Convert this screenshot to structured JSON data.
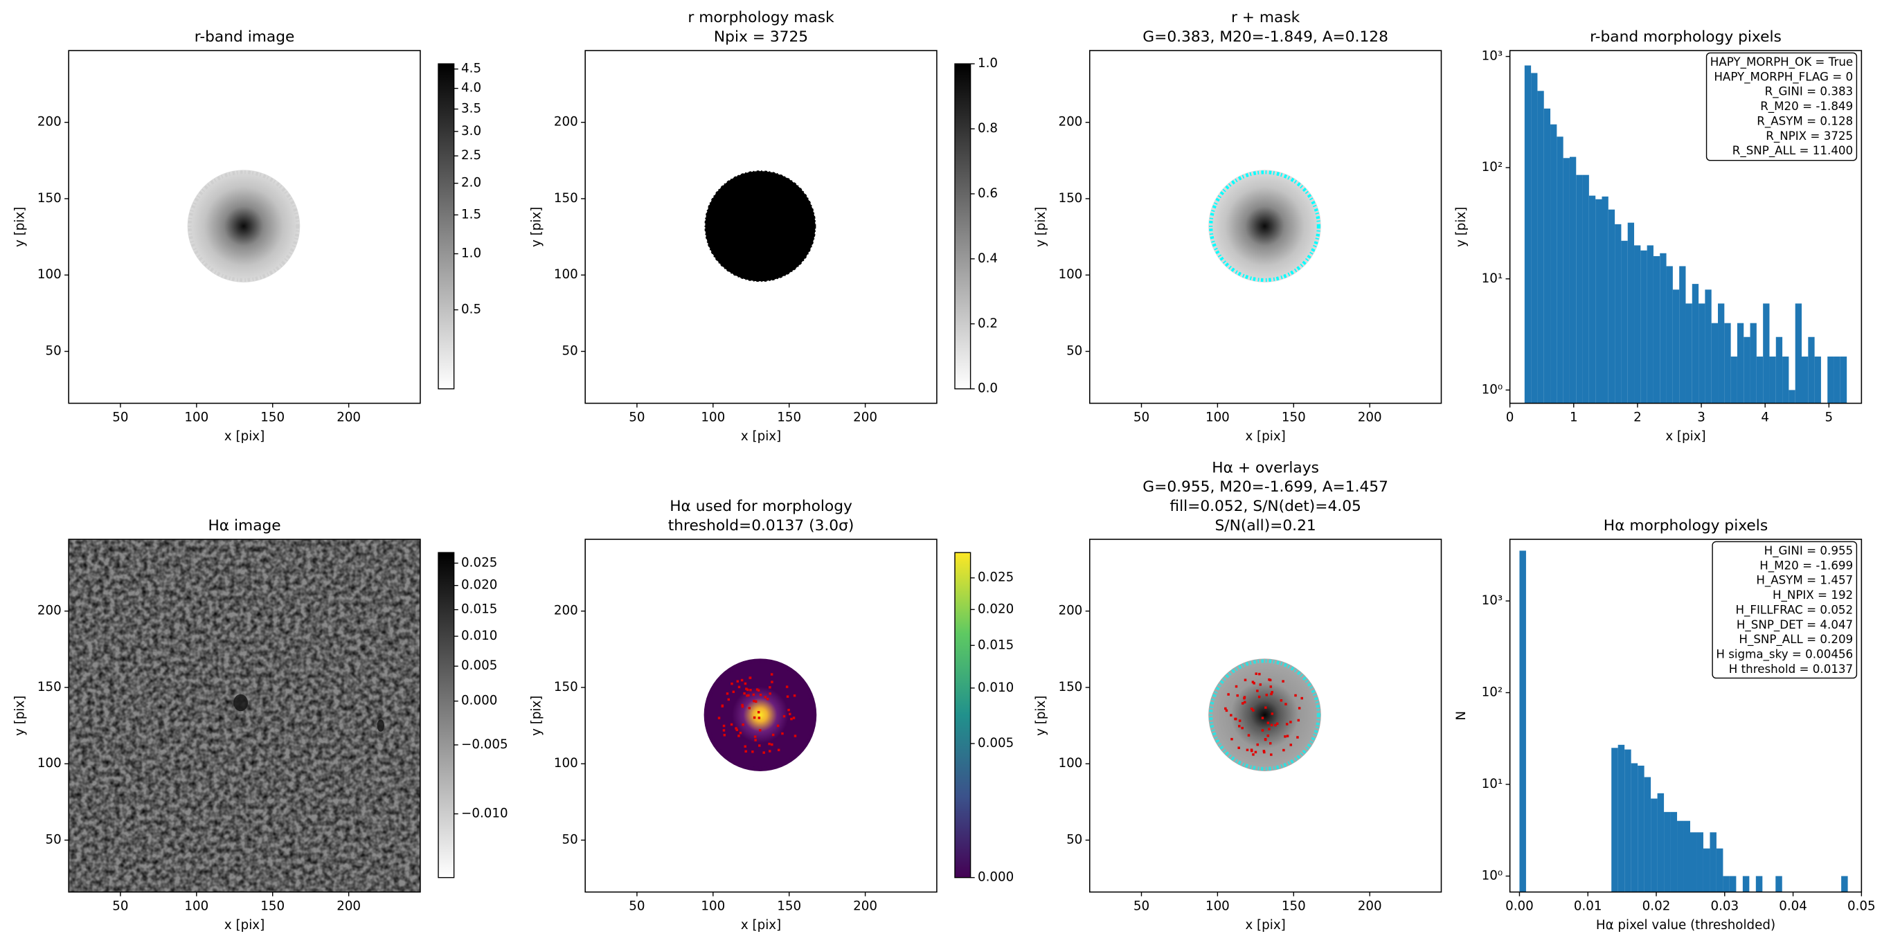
{
  "chart_data": [
    {
      "type": "image",
      "title": [
        "r-band image"
      ],
      "xlabel": "x [pix]",
      "ylabel": "y [pix]",
      "xlim": [
        16,
        247
      ],
      "ylim": [
        16,
        247
      ],
      "xticks": [
        50,
        100,
        150,
        200
      ],
      "yticks": [
        50,
        100,
        150,
        200
      ],
      "cmap": "gray_r",
      "clim": [
        0.24,
        4.64
      ],
      "cscale": "sqrt",
      "cticks": [
        0.5,
        {
          "value": 1,
          "label": "1.0"
        },
        1.5,
        {
          "value": 2,
          "label": "2.0"
        },
        2.5,
        {
          "value": 3,
          "label": "3.0"
        },
        3.5,
        {
          "value": 4,
          "label": "4.0"
        },
        4.5
      ]
    },
    {
      "type": "image",
      "title": [
        "r morphology mask",
        "Npix = 3725"
      ],
      "xlabel": "x [pix]",
      "ylabel": "y [pix]",
      "xlim": [
        16,
        247
      ],
      "ylim": [
        16,
        247
      ],
      "xticks": [
        50,
        100,
        150,
        200
      ],
      "yticks": [
        50,
        100,
        150,
        200
      ],
      "cmap": "gray_r",
      "clim": [
        0,
        1
      ],
      "cscale": "linear",
      "cticks": [
        {
          "value": 0,
          "label": "0.0"
        },
        0.2,
        0.4,
        0.6,
        0.8,
        {
          "value": 1,
          "label": "1.0"
        }
      ]
    },
    {
      "type": "image",
      "title": [
        "r + mask",
        "G=0.383, M20=-1.849, A=0.128"
      ],
      "xlabel": "x [pix]",
      "ylabel": "y [pix]",
      "xlim": [
        16,
        247
      ],
      "ylim": [
        16,
        247
      ],
      "xticks": [
        50,
        100,
        150,
        200
      ],
      "yticks": [
        50,
        100,
        150,
        200
      ]
    },
    {
      "type": "histogram",
      "title": [
        "r-band morphology pixels"
      ],
      "xlabel": "x [pix]",
      "ylabel": "y [pix]",
      "color": "#1f77b4",
      "bins": [
        0.23,
        0.331,
        0.432,
        0.533,
        0.634,
        0.735,
        0.836,
        0.937,
        1.038,
        1.139,
        1.24,
        1.341,
        1.442,
        1.543,
        1.644,
        1.745,
        1.846,
        1.947,
        2.048,
        2.149,
        2.25,
        2.351,
        2.452,
        2.553,
        2.654,
        2.755,
        2.856,
        2.957,
        3.058,
        3.159,
        3.26,
        3.361,
        3.462,
        3.563,
        3.664,
        3.765,
        3.866,
        3.967,
        4.068,
        4.169,
        4.27,
        4.371,
        4.472,
        4.573,
        4.674,
        4.775,
        4.876,
        4.977,
        5.078,
        5.179,
        5.28
      ],
      "values": [
        830,
        710,
        490,
        340,
        245,
        190,
        122,
        125,
        86,
        86,
        56,
        52,
        55,
        42,
        31,
        22,
        32,
        20,
        18,
        20,
        16,
        17,
        13,
        8,
        13,
        6,
        9,
        6,
        8,
        4,
        6,
        4,
        2,
        4,
        3,
        4,
        2,
        6,
        2,
        3,
        2,
        1,
        6,
        2,
        3,
        2,
        0,
        2,
        2,
        2
      ],
      "xlim": [
        0,
        5.51
      ],
      "xticks": [
        0,
        1,
        2,
        3,
        4,
        5
      ],
      "ylim": [
        0.76,
        1130
      ],
      "yscale": "log",
      "yticks": [
        {
          "value": 1,
          "label": "10⁰"
        },
        {
          "value": 10,
          "label": "10¹"
        },
        {
          "value": 100,
          "label": "10²"
        },
        {
          "value": 1000,
          "label": "10³"
        }
      ],
      "annotation": [
        "HAPY_MORPH_OK = True",
        "HAPY_MORPH_FLAG = 0",
        "R_GINI = 0.383",
        "R_M20 = -1.849",
        "R_ASYM = 0.128",
        "R_NPIX = 3725",
        "R_SNP_ALL = 11.400"
      ]
    },
    {
      "type": "image",
      "title": [
        "Hα image"
      ],
      "xlabel": "x [pix]",
      "ylabel": "y [pix]",
      "xlim": [
        16,
        247
      ],
      "ylim": [
        16,
        247
      ],
      "xticks": [
        50,
        100,
        150,
        200
      ],
      "yticks": [
        50,
        100,
        150,
        200
      ],
      "cmap": "gray_r",
      "clim": [
        -0.0115,
        0.0275
      ],
      "cscale": "sqrt",
      "cticks": [
        {
          "value": -0.01,
          "label": "−0.010"
        },
        {
          "value": -0.005,
          "label": "−0.005"
        },
        {
          "value": 0,
          "label": "0.000"
        },
        0.005,
        {
          "value": 0.01,
          "label": "0.010"
        },
        0.015,
        {
          "value": 0.02,
          "label": "0.020"
        },
        0.025
      ]
    },
    {
      "type": "image",
      "title": [
        "Hα used for morphology",
        "threshold=0.0137 (3.0σ)"
      ],
      "xlabel": "x [pix]",
      "ylabel": "y [pix]",
      "xlim": [
        16,
        247
      ],
      "ylim": [
        16,
        247
      ],
      "xticks": [
        50,
        100,
        150,
        200
      ],
      "yticks": [
        50,
        100,
        150,
        200
      ],
      "cmap": "viridis",
      "clim": [
        0,
        0.0294
      ],
      "cscale": "sqrt",
      "cticks": [
        {
          "value": 0,
          "label": "0.000"
        },
        0.005,
        {
          "value": 0.01,
          "label": "0.010"
        },
        0.015,
        {
          "value": 0.02,
          "label": "0.020"
        },
        0.025
      ]
    },
    {
      "type": "image",
      "title": [
        "Hα + overlays",
        "G=0.955, M20=-1.699, A=1.457",
        "fill=0.052, S/N(det)=4.05",
        "S/N(all)=0.21"
      ],
      "xlabel": "x [pix]",
      "ylabel": "y [pix]",
      "xlim": [
        16,
        247
      ],
      "ylim": [
        16,
        247
      ],
      "xticks": [
        50,
        100,
        150,
        200
      ],
      "yticks": [
        50,
        100,
        150,
        200
      ]
    },
    {
      "type": "histogram",
      "title": [
        "Hα morphology pixels"
      ],
      "xlabel": "Hα pixel value (thresholded)",
      "ylabel": "N",
      "color": "#1f77b4",
      "bins": [
        0,
        0.00096,
        0.00192,
        0.00288,
        0.00384,
        0.0048,
        0.00576,
        0.00672,
        0.00768,
        0.00864,
        0.0096,
        0.01056,
        0.01152,
        0.01248,
        0.01344,
        0.0144,
        0.01536,
        0.01632,
        0.01728,
        0.01824,
        0.0192,
        0.02016,
        0.02112,
        0.02208,
        0.02304,
        0.024,
        0.02496,
        0.02592,
        0.02688,
        0.02784,
        0.0288,
        0.02976,
        0.03072,
        0.03168,
        0.03264,
        0.0336,
        0.03456,
        0.03552,
        0.03648,
        0.03744,
        0.0384,
        0.03936,
        0.04032,
        0.04128,
        0.04224,
        0.0432,
        0.04416,
        0.04512,
        0.04608,
        0.04704,
        0.048
      ],
      "values": [
        3533,
        0,
        0,
        0,
        0,
        0,
        0,
        0,
        0,
        0,
        0,
        0,
        0,
        0,
        25,
        27,
        24,
        17,
        16,
        12,
        7,
        8,
        5,
        5,
        4,
        4,
        3,
        3,
        2,
        3,
        2,
        1,
        1,
        0,
        1,
        0,
        1,
        0,
        0,
        1,
        0,
        0,
        0,
        0,
        0,
        0,
        0,
        0,
        0,
        1
      ],
      "xlim": [
        -0.0014,
        0.05
      ],
      "xticks": [
        {
          "value": 0,
          "label": "0.00"
        },
        0.01,
        0.02,
        0.03,
        0.04,
        0.05
      ],
      "ylim": [
        0.67,
        4700
      ],
      "yscale": "log",
      "yticks": [
        {
          "value": 1,
          "label": "10⁰"
        },
        {
          "value": 10,
          "label": "10¹"
        },
        {
          "value": 100,
          "label": "10²"
        },
        {
          "value": 1000,
          "label": "10³"
        }
      ],
      "annotation": [
        "H_GINI = 0.955",
        "H_M20 = -1.699",
        "H_ASYM = 1.457",
        "H_NPIX = 192",
        "H_FILLFRAC = 0.052",
        "H_SNP_DET = 4.047",
        "H_SNP_ALL = 0.209",
        "H sigma_sky = 0.00456",
        "H threshold = 0.0137"
      ]
    }
  ]
}
